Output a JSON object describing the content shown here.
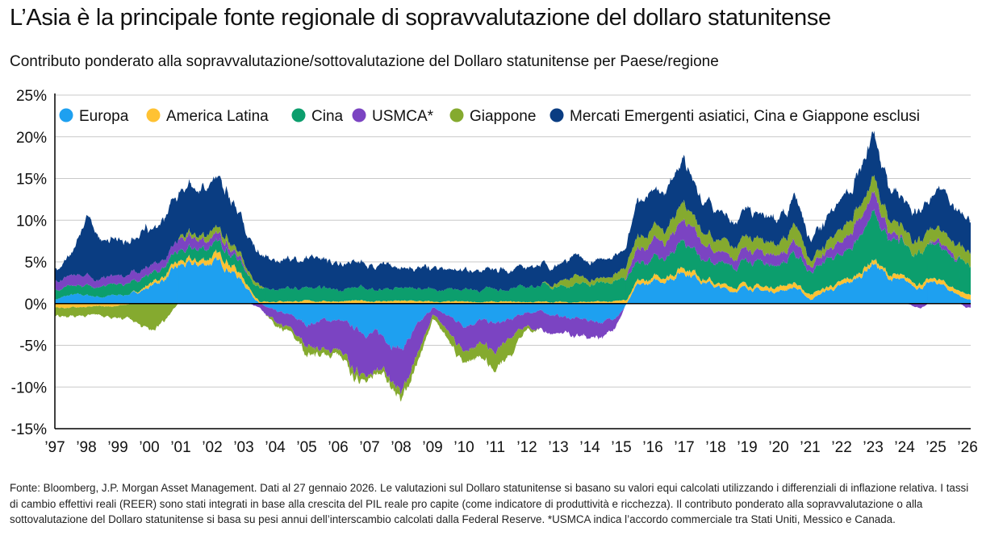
{
  "title": "L’Asia è la principale fonte regionale di sopravvalutazione del dollaro statunitense",
  "subtitle": "Contributo ponderato alla sopravvalutazione/sottovalutazione del Dollaro statunitense per Paese/regione",
  "footnote": "Fonte: Bloomberg, J.P. Morgan Asset Management. Dati al 27 gennaio 2026. Le valutazioni sul Dollaro statunitense si basano su valori equi calcolati utilizzando i differenziali di inflazione relativa. I tassi di cambio effettivi reali (REER) sono stati integrati in base alla crescita del PIL reale pro capite (come indicatore di produttività e ricchezza). Il contributo ponderato alla sopravvalutazione o alla sottovalutazione del Dollaro statunitense si basa su pesi annui dell’interscambio calcolati dalla Federal Reserve. *USMCA indica l’accordo commerciale tra Stati Uniti, Messico e Canada.",
  "chart_data": {
    "type": "area",
    "stacked": true,
    "ylim": [
      -15,
      25
    ],
    "yticks": [
      25,
      20,
      15,
      10,
      5,
      0,
      -5,
      -10,
      -15
    ],
    "ytick_labels": [
      "25%",
      "20%",
      "15%",
      "10%",
      "5%",
      "0%",
      "-5%",
      "-10%",
      "-15%"
    ],
    "x_tick_labels": [
      "’97",
      "’98",
      "’99",
      "’00",
      "’01",
      "’02",
      "’03",
      "’04",
      "’05",
      "’06",
      "’07",
      "’08",
      "’09",
      "’10",
      "’11",
      "’12",
      "’13",
      "’14",
      "’15",
      "’16",
      "’17",
      "’18",
      "’19",
      "’20",
      "’21",
      "’22",
      "’23",
      "’24",
      "’25",
      "’26"
    ],
    "legend_position": "top",
    "grid": "horizontal",
    "x": [
      1997.0,
      1997.5,
      1998.0,
      1998.5,
      1999.0,
      1999.5,
      2000.0,
      2000.5,
      2001.0,
      2001.5,
      2002.0,
      2002.5,
      2003.0,
      2003.5,
      2004.0,
      2004.5,
      2005.0,
      2005.5,
      2006.0,
      2006.5,
      2007.0,
      2007.5,
      2008.0,
      2008.5,
      2009.0,
      2009.5,
      2010.0,
      2010.5,
      2011.0,
      2011.5,
      2012.0,
      2012.5,
      2013.0,
      2013.5,
      2014.0,
      2014.5,
      2015.0,
      2015.5,
      2016.0,
      2016.5,
      2017.0,
      2017.5,
      2018.0,
      2018.5,
      2019.0,
      2019.5,
      2020.0,
      2020.5,
      2021.0,
      2021.5,
      2022.0,
      2022.5,
      2023.0,
      2023.5,
      2024.0,
      2024.5,
      2025.0,
      2025.5,
      2026.0
    ],
    "series": [
      {
        "name": "Europa",
        "color": "#1ea0f0",
        "values": [
          0.5,
          1.0,
          1.0,
          0.8,
          1.0,
          1.2,
          2.0,
          3.0,
          4.5,
          4.5,
          5.0,
          4.5,
          2.5,
          0.0,
          -1.0,
          -1.5,
          -2.5,
          -2.0,
          -2.0,
          -3.0,
          -3.5,
          -4.0,
          -5.5,
          -3.0,
          -0.5,
          -1.5,
          -2.5,
          -2.0,
          -2.5,
          -2.0,
          -1.0,
          -1.0,
          -1.5,
          -1.8,
          -2.0,
          -2.2,
          -1.0,
          2.0,
          2.5,
          3.0,
          4.0,
          3.0,
          2.0,
          1.5,
          2.0,
          1.5,
          1.5,
          2.0,
          0.5,
          1.5,
          2.0,
          3.0,
          5.0,
          3.0,
          2.5,
          2.0,
          2.5,
          1.5,
          0.5
        ]
      },
      {
        "name": "America Latina",
        "color": "#ffc233",
        "values": [
          -0.5,
          -0.5,
          -0.5,
          -0.3,
          -0.3,
          0.0,
          0.3,
          0.5,
          0.5,
          0.5,
          0.8,
          0.8,
          0.5,
          0.3,
          0.3,
          0.3,
          0.3,
          0.3,
          0.3,
          0.3,
          0.3,
          0.3,
          0.3,
          0.3,
          0.2,
          0.2,
          0.2,
          0.2,
          0.2,
          0.2,
          0.2,
          0.2,
          0.2,
          0.2,
          0.2,
          0.2,
          0.3,
          0.5,
          0.5,
          0.5,
          0.5,
          0.5,
          0.5,
          0.5,
          0.5,
          0.5,
          0.5,
          0.5,
          0.5,
          0.5,
          0.5,
          0.5,
          0.5,
          0.5,
          0.5,
          0.5,
          0.5,
          0.5,
          0.5
        ]
      },
      {
        "name": "Cina",
        "color": "#0c9e6d",
        "values": [
          1.0,
          1.0,
          1.0,
          1.2,
          1.2,
          1.2,
          1.2,
          1.2,
          1.3,
          1.3,
          1.5,
          1.5,
          1.5,
          1.5,
          1.5,
          1.5,
          1.5,
          1.5,
          1.5,
          1.5,
          1.5,
          1.5,
          1.5,
          1.5,
          1.5,
          1.5,
          1.5,
          1.5,
          1.5,
          1.5,
          1.8,
          2.0,
          2.0,
          2.0,
          2.2,
          2.2,
          2.5,
          2.5,
          2.5,
          2.5,
          3.0,
          2.5,
          2.5,
          2.5,
          2.8,
          3.0,
          3.0,
          3.5,
          2.5,
          3.0,
          3.5,
          4.0,
          5.5,
          4.0,
          4.0,
          3.5,
          4.0,
          3.5,
          3.5
        ]
      },
      {
        "name": "USMCA*",
        "color": "#7b44c2",
        "values": [
          1.0,
          1.2,
          1.2,
          1.0,
          1.0,
          1.0,
          1.0,
          1.0,
          1.2,
          1.2,
          1.0,
          0.8,
          0.3,
          -0.5,
          -1.5,
          -1.5,
          -2.5,
          -3.5,
          -4.0,
          -4.5,
          -4.5,
          -4.0,
          -5.0,
          -4.0,
          -1.0,
          -2.0,
          -3.0,
          -2.5,
          -3.5,
          -2.0,
          -1.5,
          -2.0,
          -2.0,
          -2.0,
          -2.0,
          -2.0,
          -0.5,
          1.5,
          2.0,
          2.0,
          2.5,
          2.0,
          1.5,
          1.0,
          1.5,
          1.2,
          1.2,
          1.5,
          0.5,
          1.0,
          1.5,
          2.0,
          2.5,
          1.0,
          0.0,
          -0.5,
          0.5,
          0.5,
          -0.5
        ]
      },
      {
        "name": "Giappone",
        "color": "#85aa2f",
        "values": [
          -1.0,
          -1.0,
          -1.0,
          -1.0,
          -1.5,
          -2.0,
          -3.5,
          -2.0,
          0.5,
          0.5,
          0.8,
          0.8,
          0.5,
          0.3,
          -0.5,
          -0.5,
          -1.0,
          -0.5,
          -0.5,
          -1.0,
          -0.5,
          -0.5,
          -1.0,
          -1.0,
          -0.5,
          -1.0,
          -1.5,
          -1.5,
          -2.5,
          -2.0,
          -0.5,
          0.0,
          0.5,
          1.0,
          0.5,
          0.5,
          1.0,
          1.5,
          1.5,
          1.5,
          2.0,
          1.5,
          1.5,
          1.5,
          1.5,
          1.5,
          1.5,
          2.0,
          1.0,
          1.0,
          1.5,
          1.5,
          2.0,
          1.5,
          1.5,
          1.5,
          1.5,
          1.5,
          1.5
        ]
      },
      {
        "name": "Mercati Emergenti asiatici, Cina e Giappone esclusi",
        "color": "#0a3d82",
        "values": [
          1.5,
          2.5,
          7.0,
          4.5,
          4.5,
          4.0,
          4.5,
          4.5,
          5.5,
          5.5,
          6.0,
          5.5,
          4.5,
          4.0,
          3.5,
          3.5,
          3.5,
          3.5,
          3.0,
          3.0,
          3.0,
          3.0,
          2.5,
          2.5,
          2.5,
          2.5,
          2.5,
          2.5,
          2.5,
          2.5,
          2.2,
          2.2,
          2.2,
          2.2,
          2.2,
          2.2,
          2.0,
          4.0,
          4.5,
          4.5,
          5.0,
          4.0,
          3.5,
          3.0,
          3.5,
          3.0,
          3.0,
          3.5,
          2.5,
          3.0,
          3.5,
          4.0,
          5.5,
          4.0,
          3.5,
          3.5,
          4.0,
          4.5,
          4.0
        ]
      }
    ]
  }
}
